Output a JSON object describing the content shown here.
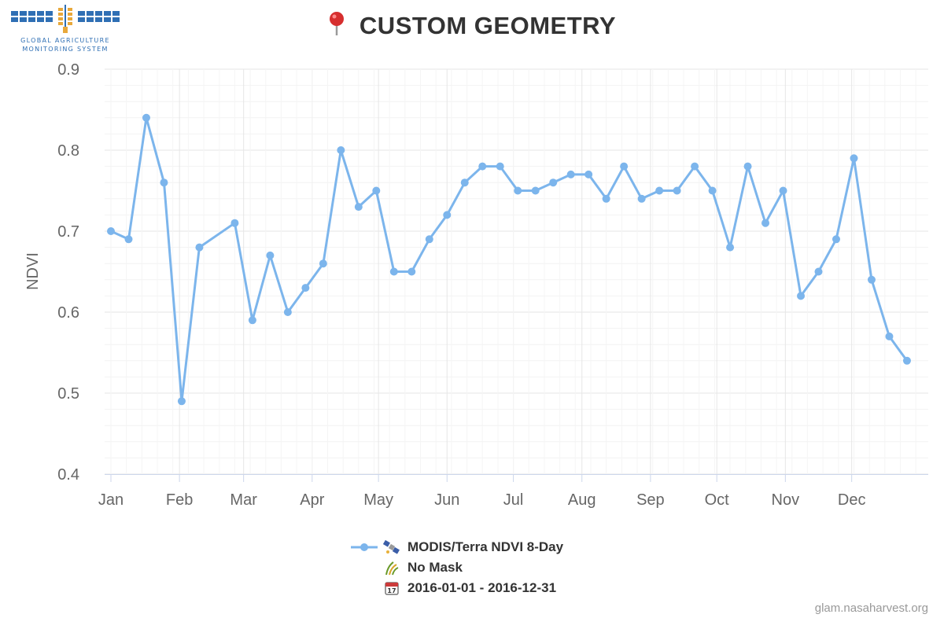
{
  "header": {
    "logo_text_line1": "GLOBAL AGRICULTURE",
    "logo_text_line2": "MONITORING SYSTEM",
    "pin_icon": "map-pin-icon",
    "title": "CUSTOM GEOMETRY"
  },
  "legend": {
    "series_label": "MODIS/Terra NDVI 8-Day",
    "series_icon": "satellite-icon",
    "mask_label": "No Mask",
    "mask_icon": "crop-icon",
    "date_label": "2016-01-01 - 2016-12-31",
    "date_icon": "calendar-icon"
  },
  "footer": {
    "credit": "glam.nasaharvest.org"
  },
  "colors": {
    "series": "#7cb5ec",
    "title": "#333333",
    "grid": "#e6e6e6",
    "axis_text": "#666666"
  },
  "chart_data": {
    "type": "line",
    "ylabel": "NDVI",
    "ylim": [
      0.4,
      0.9
    ],
    "yticks": [
      0.4,
      0.5,
      0.6,
      0.7,
      0.8,
      0.9
    ],
    "xlim": [
      "2016-01-01",
      "2016-12-31"
    ],
    "xticks": [
      {
        "label": "Jan",
        "date": "2016-01-01"
      },
      {
        "label": "Feb",
        "date": "2016-02-01"
      },
      {
        "label": "Mar",
        "date": "2016-03-01"
      },
      {
        "label": "Apr",
        "date": "2016-04-01"
      },
      {
        "label": "May",
        "date": "2016-05-01"
      },
      {
        "label": "Jun",
        "date": "2016-06-01"
      },
      {
        "label": "Jul",
        "date": "2016-07-01"
      },
      {
        "label": "Aug",
        "date": "2016-08-01"
      },
      {
        "label": "Sep",
        "date": "2016-09-01"
      },
      {
        "label": "Oct",
        "date": "2016-10-01"
      },
      {
        "label": "Nov",
        "date": "2016-11-01"
      },
      {
        "label": "Dec",
        "date": "2016-12-01"
      }
    ],
    "grid": true,
    "legend_position": "bottom",
    "series": [
      {
        "name": "MODIS/Terra NDVI 8-Day",
        "x": [
          "2016-01-01",
          "2016-01-09",
          "2016-01-17",
          "2016-01-25",
          "2016-02-02",
          "2016-02-10",
          "2016-02-26",
          "2016-03-05",
          "2016-03-13",
          "2016-03-21",
          "2016-03-29",
          "2016-04-06",
          "2016-04-14",
          "2016-04-22",
          "2016-04-30",
          "2016-05-08",
          "2016-05-16",
          "2016-05-24",
          "2016-06-01",
          "2016-06-09",
          "2016-06-17",
          "2016-06-25",
          "2016-07-03",
          "2016-07-11",
          "2016-07-19",
          "2016-07-27",
          "2016-08-04",
          "2016-08-12",
          "2016-08-20",
          "2016-08-28",
          "2016-09-05",
          "2016-09-13",
          "2016-09-21",
          "2016-09-29",
          "2016-10-07",
          "2016-10-15",
          "2016-10-23",
          "2016-10-31",
          "2016-11-08",
          "2016-11-16",
          "2016-11-24",
          "2016-12-02",
          "2016-12-10",
          "2016-12-18",
          "2016-12-26"
        ],
        "y": [
          0.7,
          0.69,
          0.84,
          0.76,
          0.49,
          0.68,
          0.71,
          0.59,
          0.67,
          0.6,
          0.63,
          0.66,
          0.8,
          0.73,
          0.75,
          0.65,
          0.65,
          0.69,
          0.72,
          0.76,
          0.78,
          0.78,
          0.75,
          0.75,
          0.76,
          0.77,
          0.77,
          0.74,
          0.78,
          0.74,
          0.75,
          0.75,
          0.78,
          0.75,
          0.68,
          0.78,
          0.71,
          0.75,
          0.62,
          0.65,
          0.69,
          0.79,
          0.64,
          0.57,
          0.54
        ]
      }
    ]
  }
}
